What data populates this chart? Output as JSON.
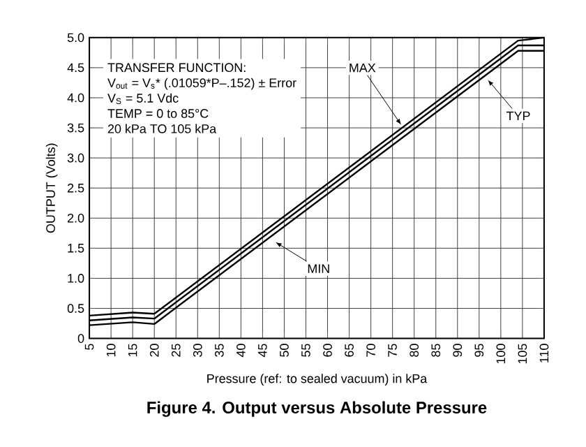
{
  "chart_data": {
    "type": "line",
    "title": "Figure 4. Output versus Absolute Pressure",
    "xlabel": "Pressure (ref: to sealed vacuum) in kPa",
    "ylabel": "OUTPUT (Volts)",
    "xlim": [
      5,
      110
    ],
    "ylim": [
      0,
      5
    ],
    "xticks": [
      5,
      10,
      15,
      20,
      25,
      30,
      35,
      40,
      45,
      50,
      55,
      60,
      65,
      70,
      75,
      80,
      85,
      90,
      95,
      100,
      105,
      110
    ],
    "yticks": [
      0,
      0.5,
      {
        "value": 1,
        "label": "1.0"
      },
      1.5,
      {
        "value": 2,
        "label": "2.0"
      },
      2.5,
      {
        "value": 3,
        "label": "3.0"
      },
      3.5,
      {
        "value": 4,
        "label": "4.0"
      },
      4.5,
      {
        "value": 5,
        "label": "5.0"
      }
    ],
    "grid": true,
    "marker": "none",
    "line_style": "solid",
    "series": [
      {
        "color": "#000000",
        "x": [
          5,
          15,
          20,
          104,
          110
        ],
        "values": [
          0.38,
          0.43,
          0.41,
          4.95,
          5.0
        ]
      },
      {
        "color": "#000000",
        "x": [
          5,
          15,
          20,
          104,
          110
        ],
        "values": [
          0.3,
          0.35,
          0.33,
          4.87,
          4.87
        ]
      },
      {
        "color": "#000000",
        "x": [
          5,
          15,
          20,
          104,
          110
        ],
        "values": [
          0.22,
          0.27,
          0.24,
          4.78,
          4.78
        ]
      }
    ],
    "annotations": [
      "TRANSFER FUNCTION:",
      "V$_{out}$ = V$_{s}$* (.01059*P–.152) ± Error",
      "V$_{S}$ = 5.1 Vdc",
      "TEMP = 0 to 85°C",
      "20 kPa TO 105 kPa",
      {
        "text": "MAX",
        "x": 77,
        "y": 3.55
      },
      {
        "text": "TYP",
        "x": 97,
        "y": 4.3
      },
      {
        "text": "MIN",
        "x": 48,
        "y": 1.6
      }
    ]
  }
}
